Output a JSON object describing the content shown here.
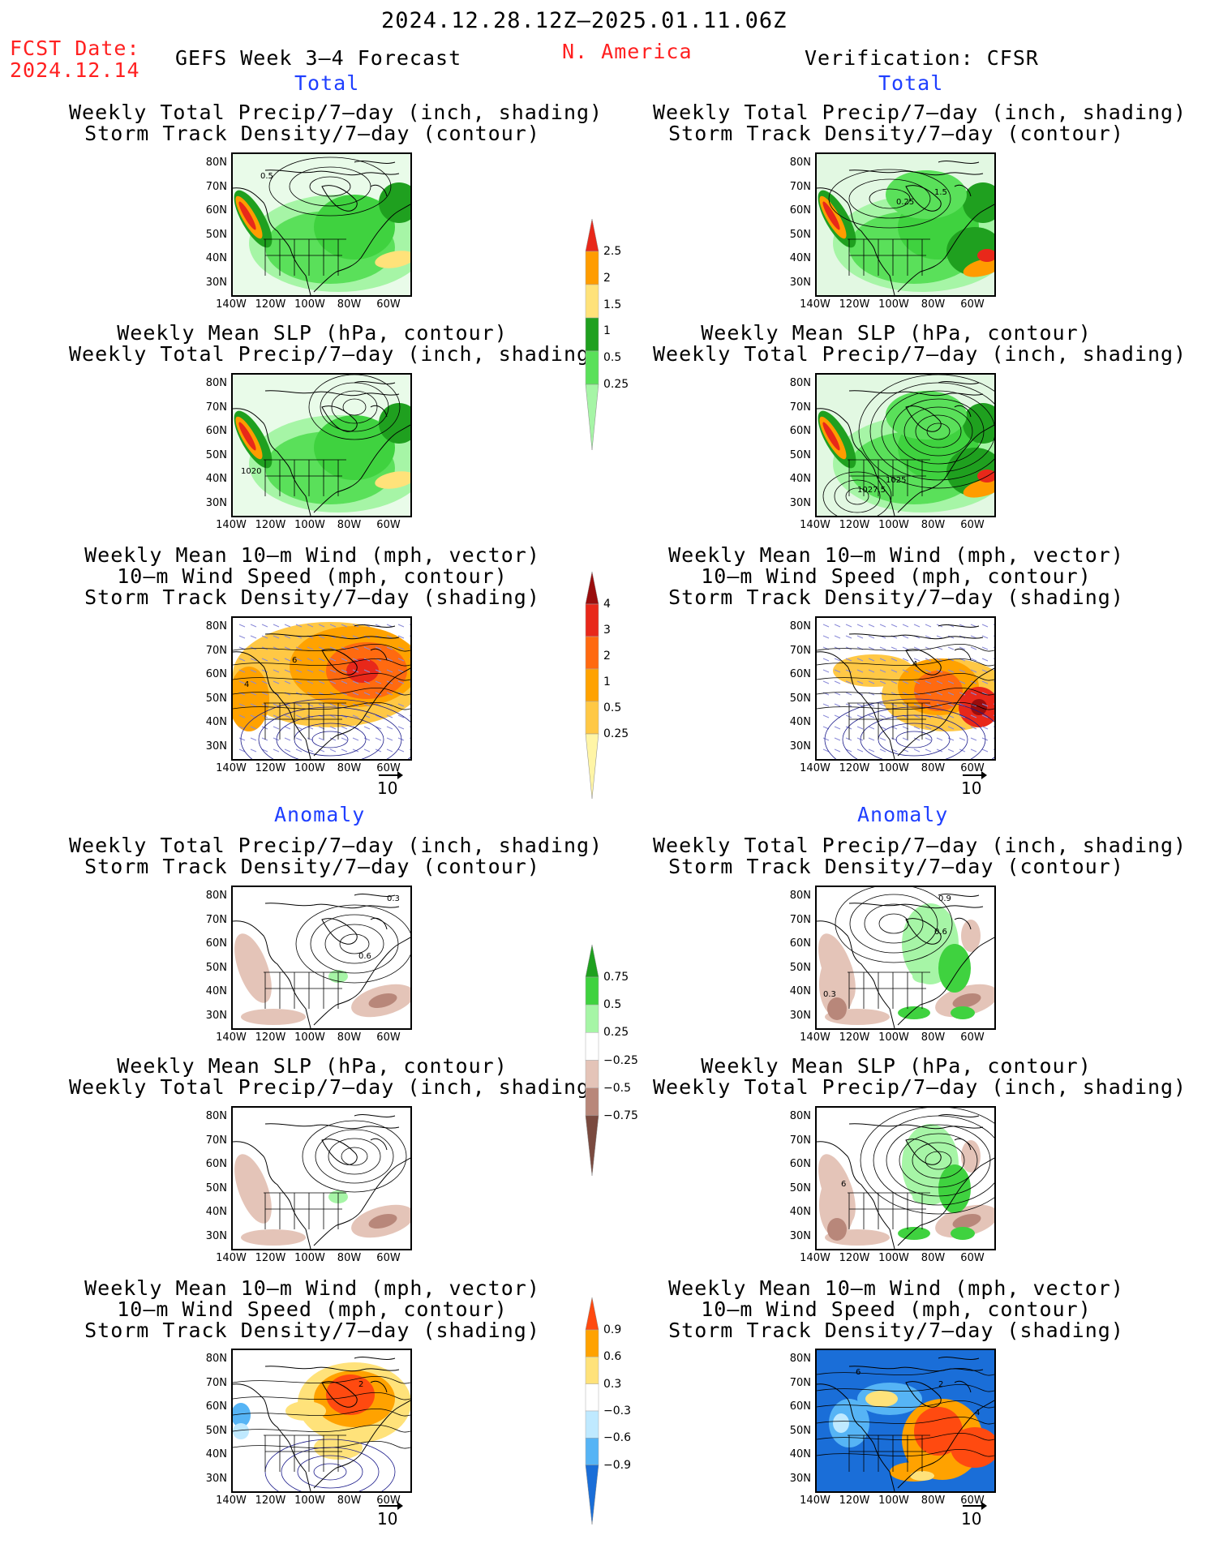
{
  "header": {
    "period": "2024.12.28.12Z–2025.01.11.06Z",
    "fcst_label": "FCST Date:",
    "fcst_date": "2024.12.14",
    "product": "GEFS Week 3–4 Forecast",
    "region": "N. America",
    "verification": "Verification: CFSR"
  },
  "sections": {
    "total": "Total",
    "anomaly": "Anomaly"
  },
  "titles": {
    "precip_storm": [
      "Weekly Total Precip/7–day (inch, shading)",
      "Storm Track Density/7–day (contour)"
    ],
    "slp_precip": [
      "Weekly Mean SLP (hPa, contour)",
      "Weekly Total Precip/7–day (inch, shading)"
    ],
    "wind_storm": [
      "Weekly Mean 10–m Wind (mph, vector)",
      "10–m Wind Speed (mph, contour)",
      "Storm Track Density/7–day (shading)"
    ]
  },
  "axes": {
    "lat_labels": [
      "80N",
      "70N",
      "60N",
      "50N",
      "40N",
      "30N"
    ],
    "lon_labels": [
      "140W",
      "120W",
      "100W",
      "80W",
      "60W"
    ]
  },
  "vector_reference": "10",
  "colorbars": {
    "precip_total": {
      "labels": [
        "2.5",
        "2",
        "1.5",
        "1",
        "0.5",
        "0.25"
      ],
      "colors": [
        "#e8281a",
        "#ff9c00",
        "#ffe27a",
        "#1fa01f",
        "#5ae05a",
        "#a6f5a6"
      ]
    },
    "storm_total": {
      "labels": [
        "4",
        "3",
        "2",
        "1",
        "0.5",
        "0.25"
      ],
      "colors": [
        "#9a0d0d",
        "#e8281a",
        "#ff6a10",
        "#ffa200",
        "#ffc845",
        "#fff5a6"
      ]
    },
    "precip_anom": {
      "labels": [
        "0.75",
        "0.5",
        "0.25",
        "−0.25",
        "−0.5",
        "−0.75"
      ],
      "colors": [
        "#1fa01f",
        "#3fd23f",
        "#a6f5a6",
        "#ffffff",
        "#e4c4b8",
        "#b8877a",
        "#7a4a3f"
      ]
    },
    "storm_anom": {
      "labels": [
        "0.9",
        "0.6",
        "0.3",
        "−0.3",
        "−0.6",
        "−0.9"
      ],
      "colors": [
        "#ff4a10",
        "#ffa200",
        "#ffe27a",
        "#ffffff",
        "#bfe9ff",
        "#56b4f5",
        "#1a6ed8"
      ]
    }
  },
  "contour_labels": {
    "p1l": "0.5",
    "p1r": "0.25",
    "p1r2": "1.5",
    "p2l": "1020",
    "p2r": "1025",
    "p2r2": "1027.5",
    "p3l": "6",
    "p3l2": "4",
    "p3r": "4",
    "p4l": "0.3",
    "p4l2": "0.6",
    "p4r": "0.9",
    "p4r2": "0.6",
    "p4r3": "0.3",
    "p5r": "6",
    "p6l": "2",
    "p6r": "6",
    "p6r2": "2",
    "p6r3": "4"
  }
}
